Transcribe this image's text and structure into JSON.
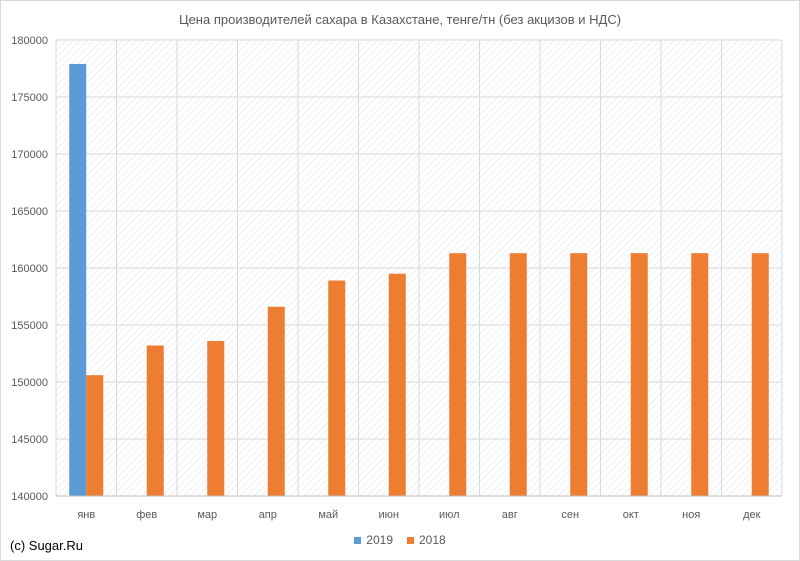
{
  "chart_data": {
    "type": "bar",
    "title": "Цена производителей сахара в Казахстане, тенге/тн (без акцизов и НДС)",
    "xlabel": "",
    "ylabel": "",
    "ylim": [
      140000,
      180000
    ],
    "yticks": [
      140000,
      145000,
      150000,
      155000,
      160000,
      165000,
      170000,
      175000,
      180000
    ],
    "categories": [
      "янв",
      "фев",
      "мар",
      "апр",
      "май",
      "июн",
      "июл",
      "авг",
      "сен",
      "окт",
      "ноя",
      "дек"
    ],
    "series": [
      {
        "name": "2019",
        "color": "#5b9bd5",
        "values": [
          177900,
          null,
          null,
          null,
          null,
          null,
          null,
          null,
          null,
          null,
          null,
          null
        ]
      },
      {
        "name": "2018",
        "color": "#ed7d31",
        "values": [
          150600,
          153200,
          153600,
          156600,
          158900,
          159500,
          161300,
          161300,
          161300,
          161300,
          161300,
          161300
        ]
      }
    ],
    "grid": true,
    "legend_position": "bottom"
  },
  "watermark": "(c) Sugar.Ru"
}
